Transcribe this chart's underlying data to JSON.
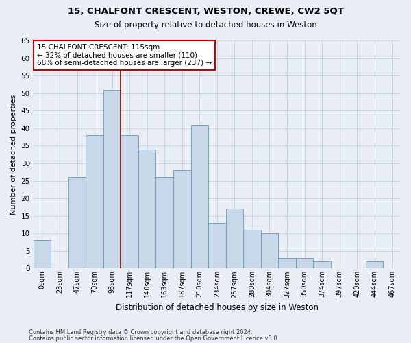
{
  "title_line1": "15, CHALFONT CRESCENT, WESTON, CREWE, CW2 5QT",
  "title_line2": "Size of property relative to detached houses in Weston",
  "xlabel": "Distribution of detached houses by size in Weston",
  "ylabel": "Number of detached properties",
  "footer_line1": "Contains HM Land Registry data © Crown copyright and database right 2024.",
  "footer_line2": "Contains public sector information licensed under the Open Government Licence v3.0.",
  "bin_labels": [
    "0sqm",
    "23sqm",
    "47sqm",
    "70sqm",
    "93sqm",
    "117sqm",
    "140sqm",
    "163sqm",
    "187sqm",
    "210sqm",
    "234sqm",
    "257sqm",
    "280sqm",
    "304sqm",
    "327sqm",
    "350sqm",
    "374sqm",
    "397sqm",
    "420sqm",
    "444sqm",
    "467sqm"
  ],
  "bar_values": [
    8,
    0,
    26,
    38,
    51,
    38,
    34,
    26,
    28,
    41,
    13,
    17,
    11,
    10,
    3,
    3,
    2,
    0,
    0,
    2,
    0
  ],
  "bar_color": "#c8d8e8",
  "bar_edge_color": "#6699bb",
  "vline_index": 5,
  "highlight_color": "#8b0000",
  "annotation_text": "15 CHALFONT CRESCENT: 115sqm\n← 32% of detached houses are smaller (110)\n68% of semi-detached houses are larger (237) →",
  "annotation_box_color": "#ffffff",
  "annotation_border_color": "#cc0000",
  "ylim": [
    0,
    65
  ],
  "yticks": [
    0,
    5,
    10,
    15,
    20,
    25,
    30,
    35,
    40,
    45,
    50,
    55,
    60,
    65
  ],
  "grid_color": "#c8d4e0",
  "bg_color": "#e8eef4"
}
